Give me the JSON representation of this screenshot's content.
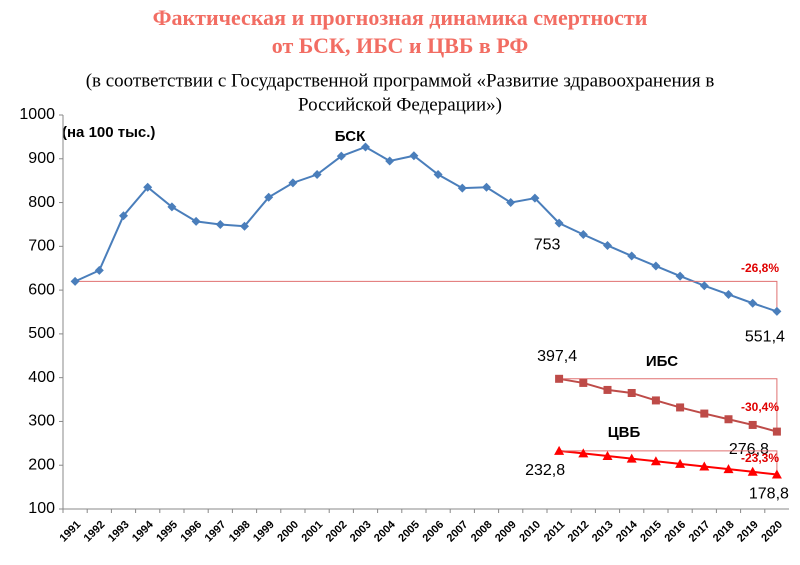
{
  "chart_data": {
    "type": "line",
    "title": [
      "Фактическая и прогнозная динамика смертности",
      "от БСК, ИБС и ЦВБ в РФ"
    ],
    "subtitle": [
      "(в соответствии с Государственной программой «Развитие здравоохранения в",
      "Российской Федерации»)"
    ],
    "unit_label": "(на 100 тыс.)",
    "categories": [
      "1991",
      "1992",
      "1993",
      "1994",
      "1995",
      "1996",
      "1997",
      "1998",
      "1999",
      "2000",
      "2001",
      "2002",
      "2003",
      "2004",
      "2005",
      "2006",
      "2007",
      "2008",
      "2009",
      "2010",
      "2011",
      "2012",
      "2013",
      "2014",
      "2015",
      "2016",
      "2017",
      "2018",
      "2019",
      "2020"
    ],
    "series": [
      {
        "name": "БСК",
        "color": "#4a7ebb",
        "marker": "diamond",
        "values": [
          620,
          645,
          770,
          835,
          790,
          757,
          750,
          746,
          812,
          845,
          864,
          906,
          927,
          895,
          907,
          864,
          833,
          835,
          800,
          810,
          753,
          727,
          702,
          678,
          655,
          632,
          610,
          590,
          570,
          551.4
        ],
        "value_labels": [
          null,
          null,
          null,
          null,
          null,
          null,
          null,
          null,
          null,
          null,
          null,
          null,
          null,
          null,
          null,
          null,
          null,
          null,
          null,
          null,
          "753",
          null,
          null,
          null,
          null,
          null,
          null,
          null,
          null,
          "551,4"
        ]
      },
      {
        "name": "ИБС",
        "color": "#be4b48",
        "marker": "square",
        "values": [
          null,
          null,
          null,
          null,
          null,
          null,
          null,
          null,
          null,
          null,
          null,
          null,
          null,
          null,
          null,
          null,
          null,
          null,
          null,
          null,
          397.4,
          388,
          372,
          365,
          348,
          332,
          318,
          305,
          292,
          276.8
        ],
        "value_labels": [
          null,
          null,
          null,
          null,
          null,
          null,
          null,
          null,
          null,
          null,
          null,
          null,
          null,
          null,
          null,
          null,
          null,
          null,
          null,
          null,
          "397,4",
          null,
          null,
          null,
          null,
          null,
          null,
          null,
          null,
          "276,8"
        ]
      },
      {
        "name": "ЦВБ",
        "color": "#ff0000",
        "marker": "triangle",
        "values": [
          null,
          null,
          null,
          null,
          null,
          null,
          null,
          null,
          null,
          null,
          null,
          null,
          null,
          null,
          null,
          null,
          null,
          null,
          null,
          null,
          232.8,
          227,
          221,
          215,
          209,
          203,
          197,
          191,
          185,
          178.8
        ],
        "value_labels": [
          null,
          null,
          null,
          null,
          null,
          null,
          null,
          null,
          null,
          null,
          null,
          null,
          null,
          null,
          null,
          null,
          null,
          null,
          null,
          null,
          "232,8",
          null,
          null,
          null,
          null,
          null,
          null,
          null,
          null,
          "178,8"
        ]
      }
    ],
    "changes": [
      "-26,8%",
      "-30,4%",
      "-23,3%"
    ],
    "ylim": [
      100,
      1000
    ],
    "yticks": [
      100,
      200,
      300,
      400,
      500,
      600,
      700,
      800,
      900,
      1000
    ],
    "grid": false
  }
}
